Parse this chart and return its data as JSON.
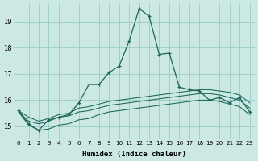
{
  "title": "",
  "xlabel": "Humidex (Indice chaleur)",
  "ylabel": "",
  "x": [
    0,
    1,
    2,
    3,
    4,
    5,
    6,
    7,
    8,
    9,
    10,
    11,
    12,
    13,
    14,
    15,
    16,
    17,
    18,
    19,
    20,
    21,
    22,
    23
  ],
  "main_line": [
    15.6,
    15.1,
    14.85,
    15.25,
    15.35,
    15.45,
    15.9,
    16.6,
    16.6,
    17.05,
    17.3,
    18.25,
    19.5,
    19.2,
    17.75,
    17.8,
    16.5,
    16.4,
    16.35,
    16.0,
    16.1,
    15.9,
    16.1,
    15.55
  ],
  "ref_line1": [
    15.6,
    15.35,
    15.2,
    15.3,
    15.45,
    15.5,
    15.7,
    15.75,
    15.85,
    15.95,
    16.0,
    16.05,
    16.1,
    16.15,
    16.2,
    16.25,
    16.3,
    16.35,
    16.4,
    16.4,
    16.35,
    16.3,
    16.2,
    15.9
  ],
  "ref_line2": [
    15.55,
    15.2,
    15.1,
    15.2,
    15.35,
    15.4,
    15.55,
    15.6,
    15.7,
    15.8,
    15.85,
    15.9,
    15.95,
    16.0,
    16.05,
    16.1,
    16.15,
    16.2,
    16.25,
    16.25,
    16.2,
    16.1,
    16.0,
    15.7
  ],
  "ref_line3": [
    15.55,
    15.05,
    14.85,
    14.9,
    15.05,
    15.1,
    15.25,
    15.3,
    15.45,
    15.55,
    15.6,
    15.65,
    15.7,
    15.75,
    15.8,
    15.85,
    15.9,
    15.95,
    16.0,
    16.0,
    15.95,
    15.85,
    15.75,
    15.45
  ],
  "bg_color": "#cce8e4",
  "grid_color": "#99ccc4",
  "line_color": "#1a6655",
  "ylim_min": 14.5,
  "ylim_max": 19.7,
  "xlim_min": -0.5,
  "xlim_max": 23.5,
  "yticks": [
    15,
    16,
    17,
    18,
    19
  ],
  "xticks": [
    0,
    1,
    2,
    3,
    4,
    5,
    6,
    7,
    8,
    9,
    10,
    11,
    12,
    13,
    14,
    15,
    16,
    17,
    18,
    19,
    20,
    21,
    22,
    23
  ]
}
